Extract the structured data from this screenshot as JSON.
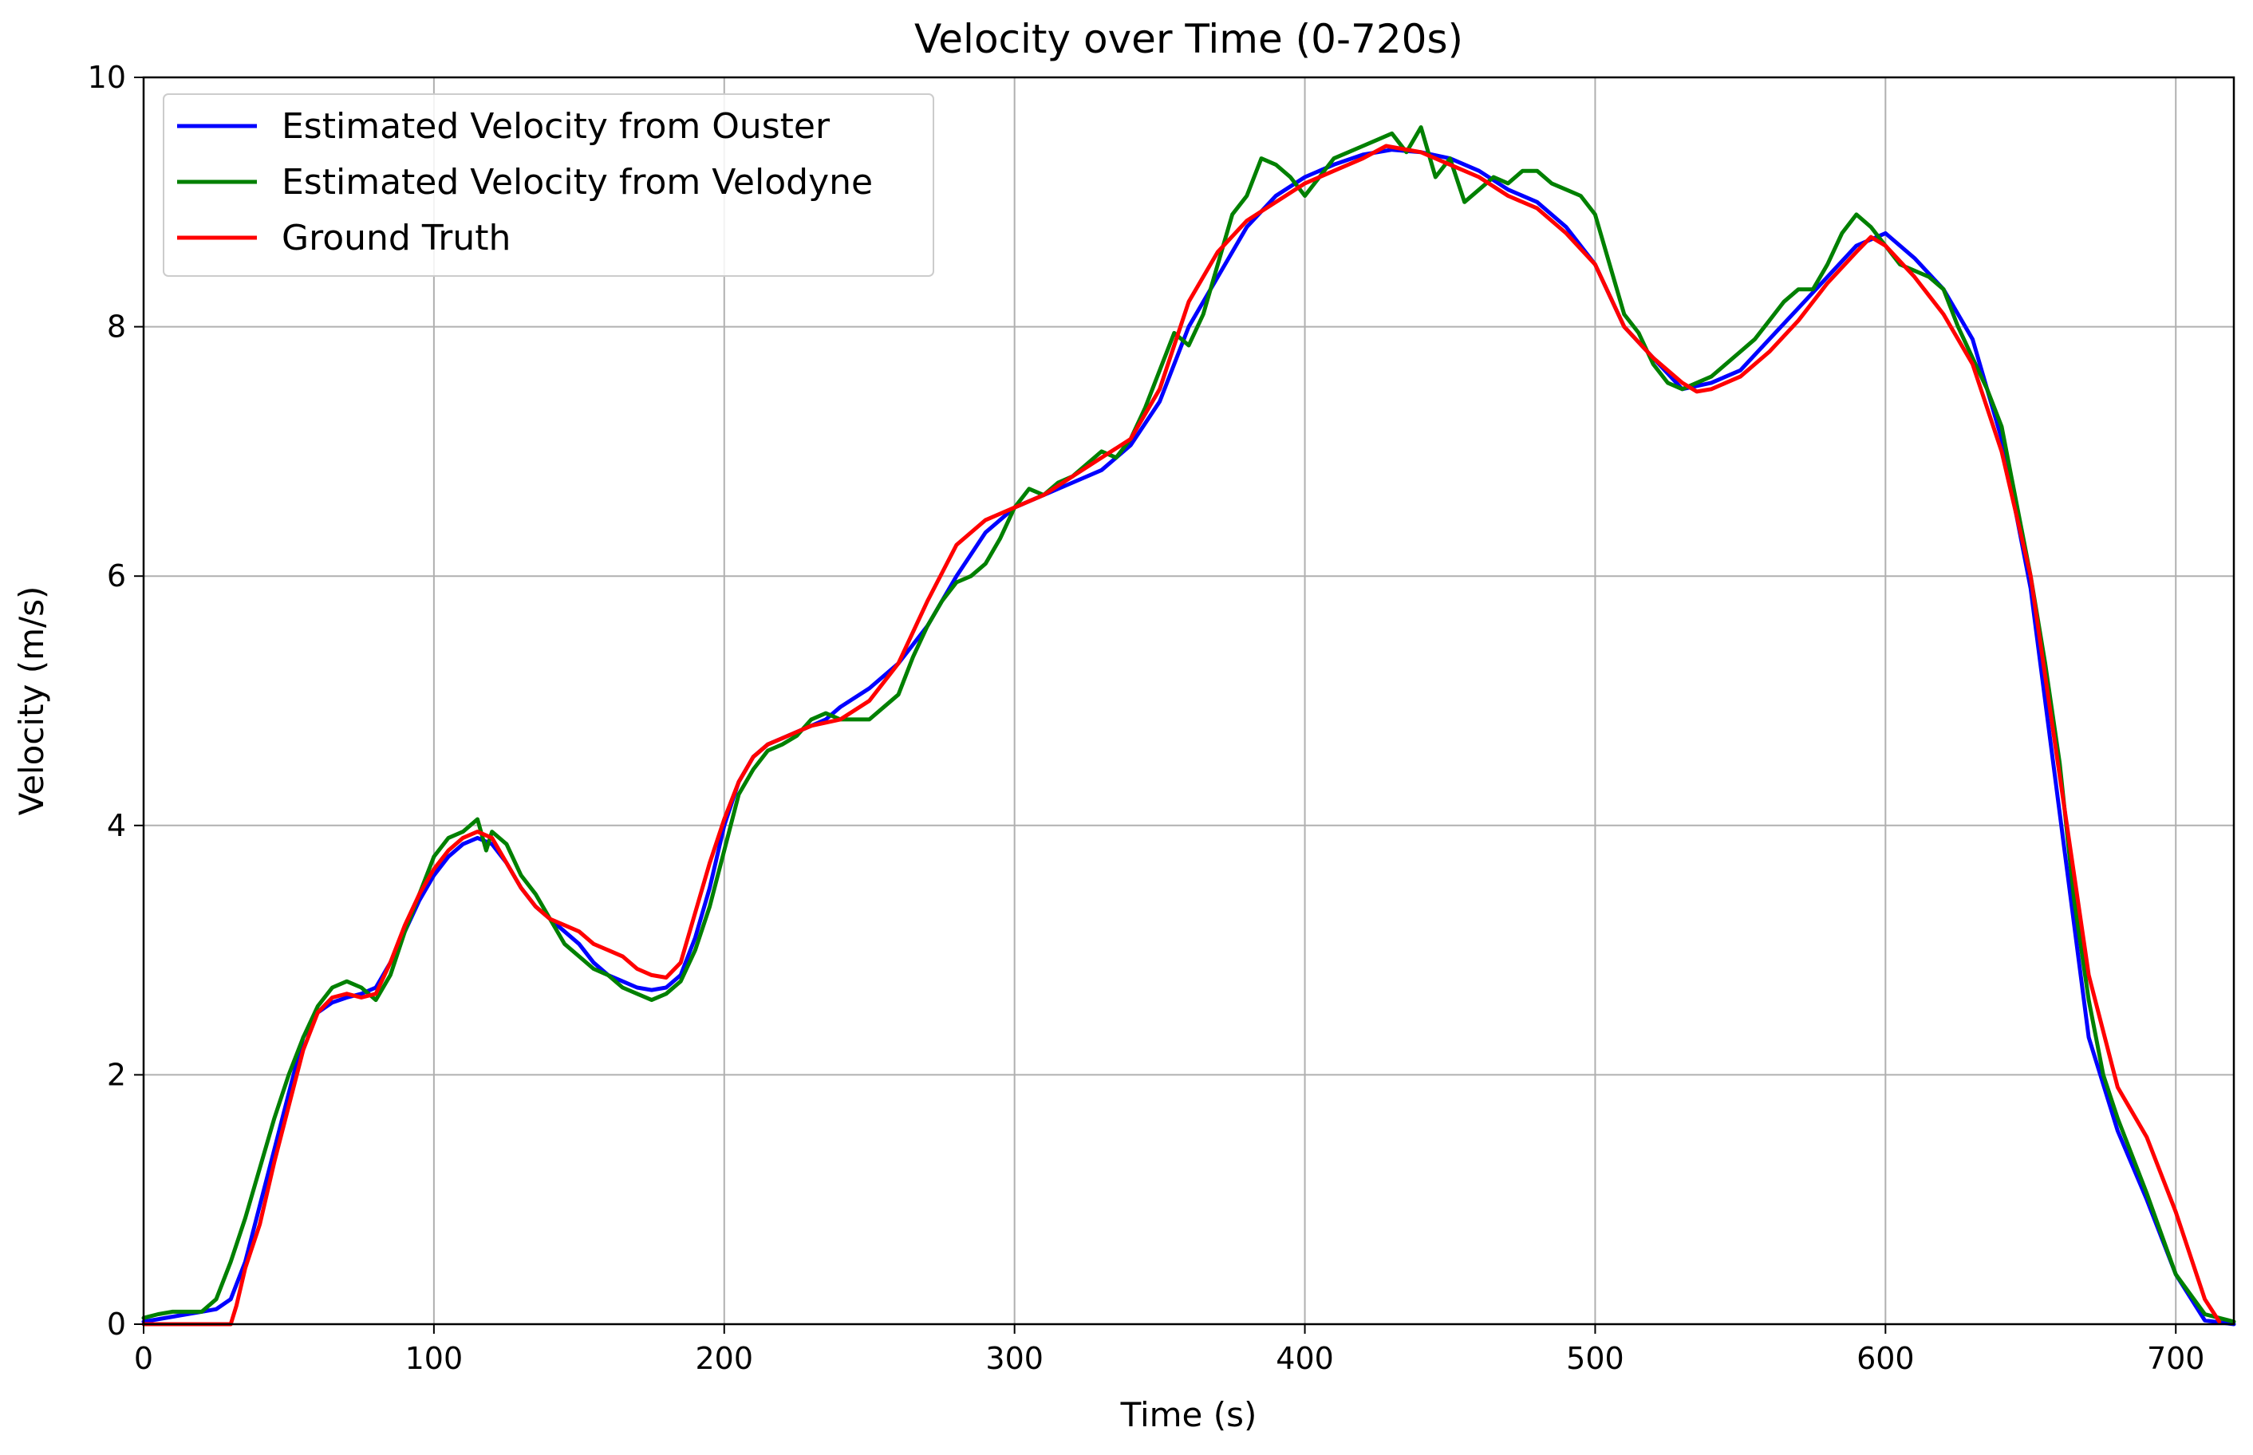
{
  "chart_data": {
    "type": "line",
    "title": "Velocity over Time (0-720s)",
    "xlabel": "Time (s)",
    "ylabel": "Velocity (m/s)",
    "xlim": [
      0,
      720
    ],
    "ylim": [
      0,
      10
    ],
    "xticks": [
      0,
      100,
      200,
      300,
      400,
      500,
      600,
      700
    ],
    "yticks": [
      0,
      2,
      4,
      6,
      8,
      10
    ],
    "grid": true,
    "legend_position": "top-left",
    "series": [
      {
        "name": "Estimated Velocity from Ouster",
        "color": "#0000ff",
        "x": [
          0,
          10,
          20,
          25,
          30,
          35,
          40,
          45,
          50,
          55,
          60,
          65,
          70,
          75,
          80,
          85,
          90,
          95,
          100,
          105,
          110,
          115,
          120,
          125,
          130,
          135,
          140,
          145,
          150,
          155,
          160,
          165,
          170,
          175,
          180,
          185,
          190,
          195,
          200,
          205,
          210,
          215,
          220,
          225,
          230,
          235,
          240,
          250,
          260,
          270,
          280,
          290,
          300,
          310,
          320,
          330,
          340,
          350,
          360,
          370,
          380,
          390,
          400,
          410,
          420,
          430,
          440,
          450,
          460,
          470,
          480,
          490,
          500,
          510,
          520,
          530,
          540,
          550,
          560,
          570,
          580,
          590,
          600,
          610,
          620,
          630,
          640,
          650,
          660,
          670,
          680,
          690,
          700,
          710,
          720
        ],
        "y": [
          0.02,
          0.06,
          0.1,
          0.12,
          0.2,
          0.5,
          0.95,
          1.4,
          1.85,
          2.3,
          2.5,
          2.58,
          2.62,
          2.65,
          2.7,
          2.9,
          3.15,
          3.4,
          3.6,
          3.75,
          3.85,
          3.9,
          3.85,
          3.7,
          3.5,
          3.35,
          3.25,
          3.15,
          3.05,
          2.9,
          2.8,
          2.75,
          2.7,
          2.68,
          2.7,
          2.8,
          3.1,
          3.5,
          4.0,
          4.35,
          4.55,
          4.65,
          4.7,
          4.75,
          4.8,
          4.85,
          4.95,
          5.1,
          5.3,
          5.6,
          6.0,
          6.35,
          6.55,
          6.65,
          6.75,
          6.85,
          7.05,
          7.4,
          8.0,
          8.4,
          8.8,
          9.05,
          9.2,
          9.3,
          9.38,
          9.42,
          9.4,
          9.35,
          9.25,
          9.1,
          9.0,
          8.8,
          8.5,
          8.0,
          7.75,
          7.5,
          7.55,
          7.65,
          7.9,
          8.15,
          8.4,
          8.65,
          8.75,
          8.55,
          8.3,
          7.9,
          7.1,
          5.9,
          4.1,
          2.3,
          1.55,
          1.0,
          0.4,
          0.03,
          0.0
        ]
      },
      {
        "name": "Estimated Velocity from Velodyne",
        "color": "#008000",
        "x": [
          0,
          5,
          10,
          20,
          25,
          30,
          35,
          40,
          45,
          50,
          55,
          60,
          65,
          70,
          75,
          80,
          85,
          90,
          95,
          100,
          105,
          110,
          115,
          118,
          120,
          125,
          130,
          135,
          140,
          145,
          150,
          155,
          160,
          165,
          170,
          175,
          180,
          185,
          190,
          195,
          200,
          205,
          210,
          215,
          220,
          225,
          230,
          235,
          240,
          250,
          255,
          260,
          265,
          270,
          275,
          280,
          285,
          290,
          295,
          300,
          305,
          310,
          315,
          320,
          325,
          330,
          335,
          340,
          345,
          350,
          355,
          360,
          365,
          370,
          375,
          380,
          385,
          390,
          395,
          400,
          405,
          410,
          415,
          420,
          425,
          430,
          435,
          440,
          445,
          450,
          455,
          460,
          465,
          470,
          475,
          480,
          485,
          490,
          495,
          500,
          505,
          510,
          515,
          520,
          525,
          530,
          535,
          540,
          545,
          550,
          555,
          560,
          565,
          570,
          575,
          580,
          585,
          590,
          595,
          600,
          605,
          610,
          615,
          620,
          625,
          630,
          635,
          640,
          645,
          650,
          655,
          660,
          665,
          670,
          675,
          680,
          690,
          700,
          710,
          720
        ],
        "y": [
          0.05,
          0.08,
          0.1,
          0.1,
          0.2,
          0.5,
          0.85,
          1.25,
          1.65,
          2.0,
          2.3,
          2.55,
          2.7,
          2.75,
          2.7,
          2.6,
          2.8,
          3.15,
          3.45,
          3.75,
          3.9,
          3.95,
          4.05,
          3.8,
          3.95,
          3.85,
          3.6,
          3.45,
          3.25,
          3.05,
          2.95,
          2.85,
          2.8,
          2.7,
          2.65,
          2.6,
          2.65,
          2.75,
          3.0,
          3.35,
          3.8,
          4.25,
          4.45,
          4.6,
          4.65,
          4.72,
          4.85,
          4.9,
          4.85,
          4.85,
          4.95,
          5.05,
          5.35,
          5.6,
          5.8,
          5.95,
          6.0,
          6.1,
          6.3,
          6.55,
          6.7,
          6.65,
          6.75,
          6.8,
          6.9,
          7.0,
          6.95,
          7.1,
          7.35,
          7.65,
          7.95,
          7.85,
          8.1,
          8.5,
          8.9,
          9.05,
          9.35,
          9.3,
          9.2,
          9.05,
          9.2,
          9.35,
          9.4,
          9.45,
          9.5,
          9.55,
          9.4,
          9.6,
          9.2,
          9.35,
          9.0,
          9.1,
          9.2,
          9.15,
          9.25,
          9.25,
          9.15,
          9.1,
          9.05,
          8.9,
          8.5,
          8.1,
          7.95,
          7.7,
          7.55,
          7.5,
          7.55,
          7.6,
          7.7,
          7.8,
          7.9,
          8.05,
          8.2,
          8.3,
          8.3,
          8.5,
          8.75,
          8.9,
          8.8,
          8.65,
          8.5,
          8.45,
          8.4,
          8.3,
          8.0,
          7.75,
          7.5,
          7.2,
          6.6,
          6.0,
          5.3,
          4.5,
          3.4,
          2.6,
          2.0,
          1.65,
          1.05,
          0.4,
          0.08,
          0.02
        ]
      },
      {
        "name": "Ground Truth",
        "color": "#ff0000",
        "x": [
          0,
          30,
          32,
          35,
          40,
          45,
          50,
          55,
          60,
          65,
          70,
          75,
          80,
          85,
          90,
          95,
          100,
          105,
          110,
          115,
          120,
          125,
          130,
          135,
          140,
          145,
          150,
          155,
          160,
          165,
          170,
          175,
          180,
          185,
          190,
          195,
          200,
          205,
          210,
          215,
          220,
          225,
          230,
          240,
          250,
          260,
          270,
          280,
          290,
          300,
          310,
          320,
          330,
          340,
          350,
          360,
          370,
          380,
          390,
          400,
          410,
          420,
          428,
          440,
          450,
          460,
          470,
          480,
          490,
          500,
          510,
          520,
          530,
          535,
          540,
          550,
          560,
          570,
          580,
          590,
          595,
          600,
          610,
          620,
          630,
          640,
          650,
          660,
          670,
          680,
          690,
          700,
          710,
          715
        ],
        "y": [
          0.0,
          0.0,
          0.15,
          0.45,
          0.8,
          1.3,
          1.75,
          2.2,
          2.5,
          2.62,
          2.65,
          2.62,
          2.65,
          2.9,
          3.2,
          3.45,
          3.65,
          3.8,
          3.9,
          3.95,
          3.9,
          3.7,
          3.5,
          3.35,
          3.25,
          3.2,
          3.15,
          3.05,
          3.0,
          2.95,
          2.85,
          2.8,
          2.78,
          2.9,
          3.3,
          3.7,
          4.05,
          4.35,
          4.55,
          4.65,
          4.7,
          4.75,
          4.8,
          4.85,
          5.0,
          5.3,
          5.8,
          6.25,
          6.45,
          6.55,
          6.65,
          6.8,
          6.95,
          7.1,
          7.5,
          8.2,
          8.6,
          8.85,
          9.0,
          9.15,
          9.25,
          9.35,
          9.45,
          9.4,
          9.3,
          9.2,
          9.05,
          8.95,
          8.75,
          8.5,
          8.0,
          7.75,
          7.55,
          7.48,
          7.5,
          7.6,
          7.8,
          8.05,
          8.35,
          8.6,
          8.72,
          8.65,
          8.4,
          8.1,
          7.7,
          7.0,
          6.0,
          4.4,
          2.8,
          1.9,
          1.5,
          0.9,
          0.2,
          0.02
        ]
      }
    ]
  }
}
